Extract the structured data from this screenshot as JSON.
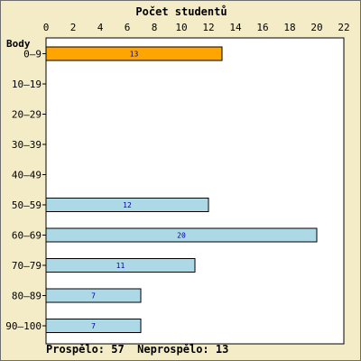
{
  "chart_data": {
    "type": "bar",
    "orientation": "horizontal",
    "title": "Počet studentů",
    "ylabel": "Body",
    "categories": [
      "0–9",
      "10–19",
      "20–29",
      "30–39",
      "40–49",
      "50–59",
      "60–69",
      "70–79",
      "80–89",
      "90–100"
    ],
    "values": [
      13,
      0,
      0,
      0,
      0,
      12,
      20,
      11,
      7,
      7
    ],
    "bar_colors": [
      "#ffa500",
      "#add8e6",
      "#add8e6",
      "#add8e6",
      "#add8e6",
      "#add8e6",
      "#add8e6",
      "#add8e6",
      "#add8e6",
      "#add8e6"
    ],
    "xlim": [
      0,
      22
    ],
    "xticks": [
      0,
      2,
      4,
      6,
      8,
      10,
      12,
      14,
      16,
      18,
      20,
      22
    ],
    "grid": false
  },
  "summary": {
    "passed_label": "Prospělo:",
    "passed_value": "57",
    "failed_label": "Neprospělo:",
    "failed_value": "13"
  },
  "colors": {
    "background": "#f3ecc6",
    "plot_area": "#ffffff",
    "value_text": "#0000a0"
  }
}
